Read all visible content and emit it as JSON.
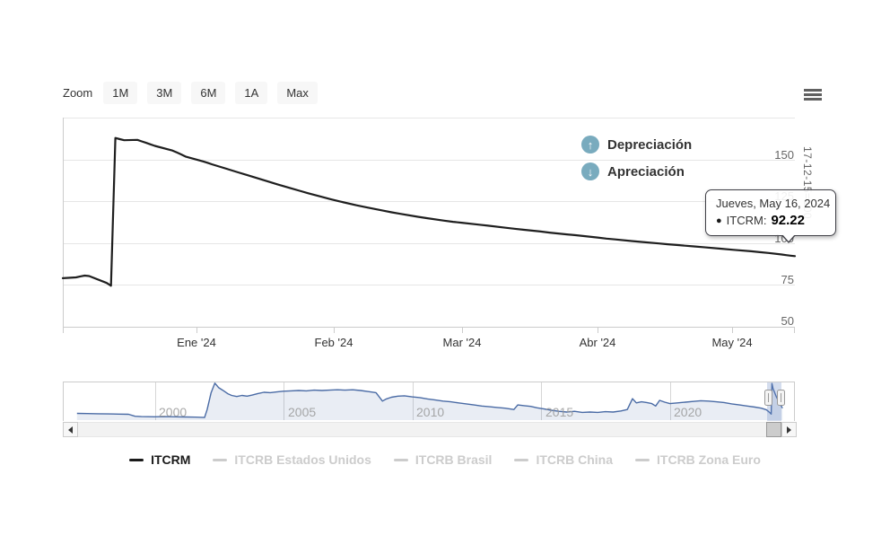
{
  "toolbar": {
    "zoom_label": "Zoom",
    "buttons": [
      "1M",
      "3M",
      "6M",
      "1A",
      "Max"
    ]
  },
  "icons": {
    "context_menu": "hamburger-menu",
    "depreciation": "arrow-up-circle",
    "appreciation": "arrow-down-circle",
    "scroll_left": "left-triangle",
    "scroll_right": "right-triangle",
    "annotation_icon_color": "#79abbe"
  },
  "annotations": {
    "depreciation_label": "Depreciación",
    "appreciation_label": "Apreciación",
    "up_glyph": "↑",
    "down_glyph": "↓"
  },
  "tooltip": {
    "date": "Jueves, May 16, 2024",
    "marker": "●",
    "series_label": "ITCRM:",
    "value": "92.22"
  },
  "legend": {
    "items": [
      {
        "label": "ITCRM",
        "active": true
      },
      {
        "label": "ITCRB Estados Unidos",
        "active": false
      },
      {
        "label": "ITCRB Brasil",
        "active": false
      },
      {
        "label": "ITCRB China",
        "active": false
      },
      {
        "label": "ITCRB Zona Euro",
        "active": false
      }
    ],
    "active_color": "#1a1a1a",
    "disabled_color": "#cccccc"
  },
  "chart_data": {
    "type": "line",
    "title": "",
    "ylabel": "17-12-15=100",
    "grid": true,
    "legend_position": "bottom",
    "yticks": [
      150,
      125,
      100,
      75,
      50
    ],
    "ylim": [
      50,
      175
    ],
    "xticklabels": [
      "Ene '24",
      "Feb '24",
      "Mar '24",
      "Abr '24",
      "May '24"
    ],
    "xrange": [
      "2023-12-01",
      "2024-05-16"
    ],
    "series": [
      {
        "name": "ITCRM",
        "color": "#1f1f1f",
        "points": [
          [
            "2023-12-01",
            79.0
          ],
          [
            "2023-12-04",
            79.5
          ],
          [
            "2023-12-05",
            80.1
          ],
          [
            "2023-12-06",
            80.6
          ],
          [
            "2023-12-07",
            80.3
          ],
          [
            "2023-12-11",
            76.2
          ],
          [
            "2023-12-12",
            74.5
          ],
          [
            "2023-12-13",
            162.8
          ],
          [
            "2023-12-14",
            162.1
          ],
          [
            "2023-12-15",
            161.5
          ],
          [
            "2023-12-18",
            161.7
          ],
          [
            "2023-12-19",
            160.8
          ],
          [
            "2023-12-20",
            159.9
          ],
          [
            "2023-12-21",
            159.0
          ],
          [
            "2023-12-22",
            158.1
          ],
          [
            "2023-12-26",
            155.3
          ],
          [
            "2023-12-27",
            154.2
          ],
          [
            "2023-12-28",
            153.0
          ],
          [
            "2023-12-29",
            151.7
          ],
          [
            "2024-01-02",
            148.8
          ],
          [
            "2024-01-03",
            148.0
          ],
          [
            "2024-01-04",
            147.1
          ],
          [
            "2024-01-05",
            146.3
          ],
          [
            "2024-01-08",
            143.9
          ],
          [
            "2024-01-10",
            142.3
          ],
          [
            "2024-01-12",
            140.7
          ],
          [
            "2024-01-15",
            138.3
          ],
          [
            "2024-01-17",
            136.7
          ],
          [
            "2024-01-19",
            135.1
          ],
          [
            "2024-01-22",
            132.8
          ],
          [
            "2024-01-24",
            131.3
          ],
          [
            "2024-01-26",
            129.8
          ],
          [
            "2024-01-29",
            127.7
          ],
          [
            "2024-01-31",
            126.3
          ],
          [
            "2024-02-02",
            125.0
          ],
          [
            "2024-02-06",
            122.6
          ],
          [
            "2024-02-08",
            121.5
          ],
          [
            "2024-02-12",
            119.4
          ],
          [
            "2024-02-14",
            118.4
          ],
          [
            "2024-02-16",
            117.5
          ],
          [
            "2024-02-20",
            115.7
          ],
          [
            "2024-02-22",
            114.9
          ],
          [
            "2024-02-26",
            113.4
          ],
          [
            "2024-02-28",
            112.7
          ],
          [
            "2024-03-01",
            112.2
          ],
          [
            "2024-03-05",
            111.0
          ],
          [
            "2024-03-07",
            110.4
          ],
          [
            "2024-03-11",
            109.2
          ],
          [
            "2024-03-13",
            108.6
          ],
          [
            "2024-03-15",
            108.0
          ],
          [
            "2024-03-19",
            106.9
          ],
          [
            "2024-03-21",
            106.3
          ],
          [
            "2024-03-25",
            105.2
          ],
          [
            "2024-03-27",
            104.7
          ],
          [
            "2024-04-01",
            103.3
          ],
          [
            "2024-04-03",
            102.7
          ],
          [
            "2024-04-05",
            102.2
          ],
          [
            "2024-04-09",
            101.2
          ],
          [
            "2024-04-11",
            100.7
          ],
          [
            "2024-04-15",
            99.8
          ],
          [
            "2024-04-17",
            99.3
          ],
          [
            "2024-04-19",
            98.9
          ],
          [
            "2024-04-23",
            98.0
          ],
          [
            "2024-04-25",
            97.6
          ],
          [
            "2024-04-29",
            96.7
          ],
          [
            "2024-05-02",
            96.0
          ],
          [
            "2024-05-06",
            95.1
          ],
          [
            "2024-05-08",
            94.6
          ],
          [
            "2024-05-10",
            94.1
          ],
          [
            "2024-05-13",
            93.2
          ],
          [
            "2024-05-14",
            92.8
          ],
          [
            "2024-05-15",
            92.5
          ],
          [
            "2024-05-16",
            92.22
          ]
        ]
      }
    ],
    "navigator": {
      "xticklabels": [
        "2000",
        "2005",
        "2010",
        "2015",
        "2020"
      ],
      "xlim": [
        1996.45,
        2024.85
      ],
      "ylim": [
        58,
        165
      ],
      "selected_range": [
        "2023-11-30",
        "2024-05-16"
      ],
      "series": {
        "name": "ITCRM",
        "color": "#4a6ba5",
        "points": [
          [
            1997.0,
            77
          ],
          [
            1997.4,
            76.5
          ],
          [
            1997.8,
            76
          ],
          [
            1998.2,
            75.5
          ],
          [
            1998.6,
            75
          ],
          [
            1999.0,
            74.5
          ],
          [
            1999.25,
            69
          ],
          [
            1999.5,
            68
          ],
          [
            2000.0,
            67.5
          ],
          [
            2000.4,
            68
          ],
          [
            2000.8,
            67.5
          ],
          [
            2001.2,
            67
          ],
          [
            2001.6,
            66.5
          ],
          [
            2001.95,
            65.5
          ],
          [
            2002.05,
            88
          ],
          [
            2002.2,
            135
          ],
          [
            2002.35,
            163
          ],
          [
            2002.5,
            150
          ],
          [
            2002.65,
            143
          ],
          [
            2002.85,
            133
          ],
          [
            2003.0,
            128
          ],
          [
            2003.2,
            125
          ],
          [
            2003.4,
            128
          ],
          [
            2003.6,
            126
          ],
          [
            2003.8,
            129
          ],
          [
            2004.0,
            133
          ],
          [
            2004.25,
            137
          ],
          [
            2004.5,
            136
          ],
          [
            2004.75,
            138
          ],
          [
            2005.0,
            140
          ],
          [
            2005.3,
            141
          ],
          [
            2005.6,
            142
          ],
          [
            2005.9,
            141
          ],
          [
            2006.2,
            143
          ],
          [
            2006.5,
            142
          ],
          [
            2006.8,
            143
          ],
          [
            2007.1,
            144
          ],
          [
            2007.4,
            143
          ],
          [
            2007.7,
            144
          ],
          [
            2008.0,
            142
          ],
          [
            2008.3,
            139
          ],
          [
            2008.6,
            136
          ],
          [
            2008.85,
            112
          ],
          [
            2009.0,
            118
          ],
          [
            2009.2,
            123
          ],
          [
            2009.45,
            126
          ],
          [
            2009.7,
            127
          ],
          [
            2010.0,
            124
          ],
          [
            2010.3,
            122
          ],
          [
            2010.6,
            118
          ],
          [
            2010.9,
            115
          ],
          [
            2011.2,
            112
          ],
          [
            2011.5,
            110
          ],
          [
            2011.8,
            107
          ],
          [
            2012.1,
            104
          ],
          [
            2012.4,
            101
          ],
          [
            2012.7,
            98
          ],
          [
            2013.0,
            96
          ],
          [
            2013.3,
            94
          ],
          [
            2013.6,
            92
          ],
          [
            2013.95,
            88
          ],
          [
            2014.1,
            101
          ],
          [
            2014.35,
            99
          ],
          [
            2014.6,
            97
          ],
          [
            2014.85,
            93
          ],
          [
            2015.1,
            90
          ],
          [
            2015.4,
            86
          ],
          [
            2015.7,
            83
          ],
          [
            2016.0,
            81
          ],
          [
            2016.3,
            83
          ],
          [
            2016.6,
            80
          ],
          [
            2016.9,
            81
          ],
          [
            2017.2,
            80
          ],
          [
            2017.5,
            82
          ],
          [
            2017.8,
            81
          ],
          [
            2018.1,
            84
          ],
          [
            2018.35,
            88
          ],
          [
            2018.55,
            119
          ],
          [
            2018.7,
            107
          ],
          [
            2018.9,
            110
          ],
          [
            2019.1,
            108
          ],
          [
            2019.3,
            105
          ],
          [
            2019.45,
            98
          ],
          [
            2019.6,
            114
          ],
          [
            2019.8,
            109
          ],
          [
            2020.0,
            105
          ],
          [
            2020.3,
            107
          ],
          [
            2020.6,
            109
          ],
          [
            2020.9,
            111
          ],
          [
            2021.2,
            113
          ],
          [
            2021.5,
            112
          ],
          [
            2021.8,
            110
          ],
          [
            2022.1,
            108
          ],
          [
            2022.4,
            104
          ],
          [
            2022.7,
            101
          ],
          [
            2023.0,
            98
          ],
          [
            2023.3,
            95
          ],
          [
            2023.55,
            92
          ],
          [
            2023.75,
            87
          ],
          [
            2023.87,
            80
          ],
          [
            2023.93,
            75
          ],
          [
            2023.96,
            162
          ],
          [
            2024.0,
            148
          ],
          [
            2024.12,
            126
          ],
          [
            2024.25,
            107
          ],
          [
            2024.37,
            92
          ]
        ]
      }
    }
  }
}
